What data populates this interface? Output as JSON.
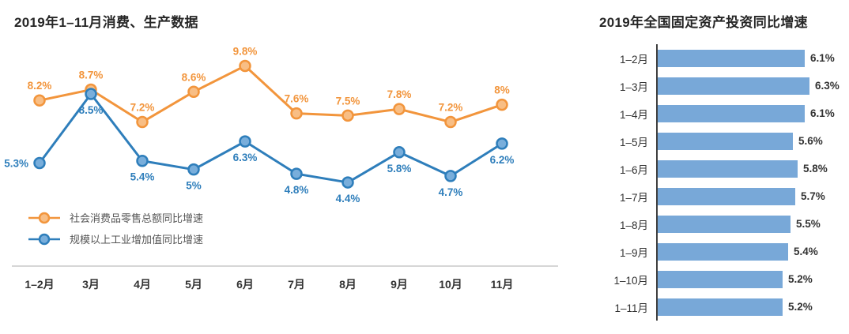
{
  "chart_data": [
    {
      "type": "line",
      "title": "2019年1–11月消费、生产数据",
      "categories": [
        "1–2月",
        "3月",
        "4月",
        "5月",
        "6月",
        "7月",
        "8月",
        "9月",
        "10月",
        "11月"
      ],
      "series": [
        {
          "name": "社会消费品零售总额同比增速",
          "color": "#F2953C",
          "marker_fill": "#F8BE85",
          "values": [
            8.2,
            8.7,
            7.2,
            8.6,
            9.8,
            7.6,
            7.5,
            7.8,
            7.2,
            8
          ],
          "labels": [
            "8.2%",
            "8.7%",
            "7.2%",
            "8.6%",
            "9.8%",
            "7.6%",
            "7.5%",
            "7.8%",
            "7.2%",
            "8%"
          ]
        },
        {
          "name": "规模以上工业增加值同比增速",
          "color": "#2E7EBB",
          "marker_fill": "#79AEDB",
          "values": [
            5.3,
            8.5,
            5.4,
            5,
            6.3,
            4.8,
            4.4,
            5.8,
            4.7,
            6.2
          ],
          "labels": [
            "5.3%",
            "8.5%",
            "5.4%",
            "5%",
            "6.3%",
            "4.8%",
            "4.4%",
            "5.8%",
            "4.7%",
            "6.2%"
          ]
        }
      ],
      "ylim": [
        4,
        10.5
      ],
      "grid": false,
      "legend_position": "bottom-left"
    },
    {
      "type": "bar",
      "orientation": "horizontal",
      "title": "2019年全国固定资产投资同比增速",
      "categories": [
        "1–2月",
        "1–3月",
        "1–4月",
        "1–5月",
        "1–6月",
        "1–7月",
        "1–8月",
        "1–9月",
        "1–10月",
        "1–11月"
      ],
      "values": [
        6.1,
        6.3,
        6.1,
        5.6,
        5.8,
        5.7,
        5.5,
        5.4,
        5.2,
        5.2
      ],
      "labels": [
        "6.1%",
        "6.3%",
        "6.1%",
        "5.6%",
        "5.8%",
        "5.7%",
        "5.5%",
        "5.4%",
        "5.2%",
        "5.2%"
      ],
      "xlim": [
        0,
        6.3
      ],
      "bar_color": "#78A8D8",
      "axis_color": "#3f3f3f"
    }
  ],
  "colors": {
    "title_text": "#262626",
    "axis_text": "#333333",
    "axis_line": "#ADADAD",
    "legend_text": "#555555"
  }
}
